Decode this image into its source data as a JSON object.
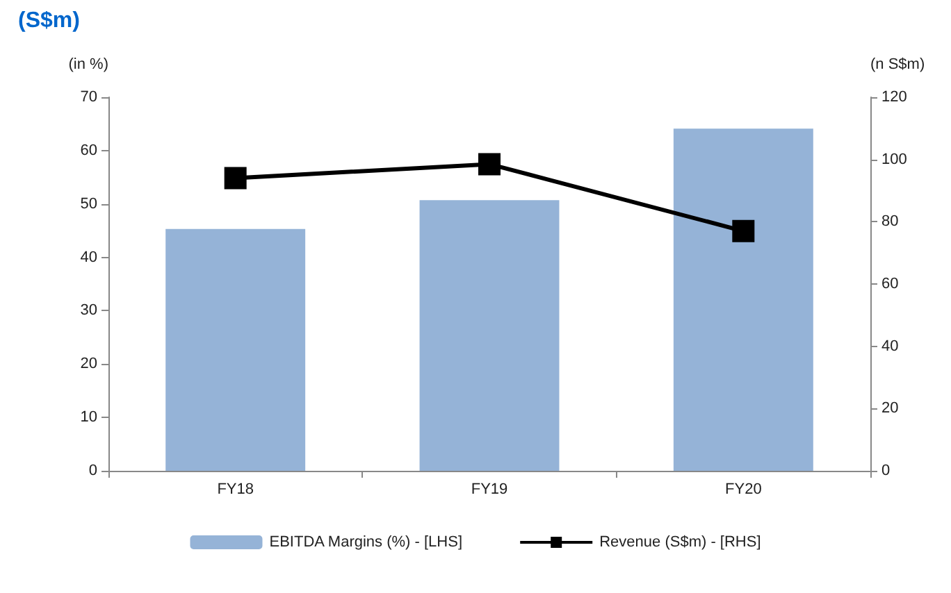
{
  "chart_data": {
    "type": "bar",
    "title": "(S$m)",
    "categories": [
      "FY18",
      "FY19",
      "FY20"
    ],
    "series": [
      {
        "name": "EBITDA Margins (%) - [LHS]",
        "color": "#95b3d7",
        "values": [
          45.3,
          50.7,
          64.1
        ]
      },
      {
        "name": "Revenue (S$m) - [RHS]",
        "type": "line",
        "axis": "y2",
        "color": "#000000",
        "values": [
          94,
          98.5,
          77
        ]
      }
    ],
    "ylabel": "(in %)",
    "y2label": "(n S$m)",
    "ylim": [
      0,
      70
    ],
    "yticks": [
      0,
      10,
      20,
      30,
      40,
      50,
      60,
      70
    ],
    "y2lim": [
      0,
      120
    ],
    "y2ticks": [
      0,
      20,
      40,
      60,
      80,
      100,
      120
    ],
    "grid": false,
    "legend": "bottom",
    "marker": "square",
    "line_style": "solid"
  }
}
